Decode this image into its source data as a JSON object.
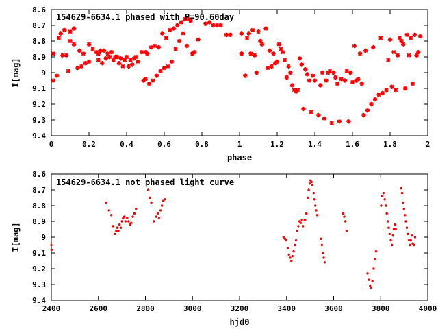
{
  "chart_data": [
    {
      "type": "scatter",
      "title": "154629-6634.1 phased with P=90.60day",
      "xlabel": "phase",
      "ylabel": "I[mag]",
      "xlim": [
        0,
        2
      ],
      "ylim": [
        9.4,
        8.6
      ],
      "y_inverted": true,
      "grid": false,
      "marker": "star",
      "color": "#ff0000",
      "x_ticks": [
        0,
        0.2,
        0.4,
        0.6,
        0.8,
        1,
        1.2,
        1.4,
        1.6,
        1.8,
        2
      ],
      "x_tick_labels": [
        "0",
        "0.2",
        "0.4",
        "0.6",
        "0.8",
        "1",
        "1.2",
        "1.4",
        "1.6",
        "1.8",
        "2"
      ],
      "y_ticks": [
        8.6,
        8.7,
        8.8,
        8.9,
        9,
        9.1,
        9.2,
        9.3,
        9.4
      ],
      "y_tick_labels": [
        "8.6",
        "8.7",
        "8.8",
        "8.9",
        "9",
        "9.1",
        "9.2",
        "9.3",
        "9.4"
      ],
      "points": [
        [
          0.01,
          9.05
        ],
        [
          0.01,
          8.88
        ],
        [
          0.03,
          9.02
        ],
        [
          0.04,
          8.78
        ],
        [
          0.05,
          8.75
        ],
        [
          0.06,
          8.89
        ],
        [
          0.07,
          8.73
        ],
        [
          0.08,
          8.89
        ],
        [
          0.09,
          8.99
        ],
        [
          0.1,
          8.74
        ],
        [
          0.1,
          8.8
        ],
        [
          0.12,
          8.72
        ],
        [
          0.12,
          8.82
        ],
        [
          0.14,
          8.97
        ],
        [
          0.15,
          8.86
        ],
        [
          0.16,
          8.96
        ],
        [
          0.17,
          8.88
        ],
        [
          0.18,
          8.94
        ],
        [
          0.2,
          8.93
        ],
        [
          0.2,
          8.82
        ],
        [
          0.22,
          8.85
        ],
        [
          0.24,
          8.87
        ],
        [
          0.25,
          8.92
        ],
        [
          0.25,
          8.88
        ],
        [
          0.26,
          8.86
        ],
        [
          0.27,
          8.94
        ],
        [
          0.28,
          8.86
        ],
        [
          0.29,
          8.91
        ],
        [
          0.3,
          8.88
        ],
        [
          0.31,
          8.9
        ],
        [
          0.32,
          8.87
        ],
        [
          0.33,
          8.92
        ],
        [
          0.34,
          8.9
        ],
        [
          0.35,
          8.9
        ],
        [
          0.36,
          8.94
        ],
        [
          0.37,
          8.91
        ],
        [
          0.38,
          8.96
        ],
        [
          0.39,
          8.92
        ],
        [
          0.4,
          8.9
        ],
        [
          0.41,
          8.96
        ],
        [
          0.42,
          8.92
        ],
        [
          0.43,
          8.95
        ],
        [
          0.44,
          8.91
        ],
        [
          0.45,
          8.9
        ],
        [
          0.46,
          8.93
        ],
        [
          0.48,
          8.87
        ],
        [
          0.49,
          9.05
        ],
        [
          0.5,
          9.04
        ],
        [
          0.5,
          8.87
        ],
        [
          0.51,
          8.88
        ],
        [
          0.52,
          9.07
        ],
        [
          0.53,
          8.84
        ],
        [
          0.54,
          9.05
        ],
        [
          0.55,
          8.83
        ],
        [
          0.56,
          9.02
        ],
        [
          0.57,
          8.84
        ],
        [
          0.58,
          8.99
        ],
        [
          0.59,
          8.75
        ],
        [
          0.6,
          8.97
        ],
        [
          0.61,
          8.78
        ],
        [
          0.62,
          8.96
        ],
        [
          0.63,
          8.73
        ],
        [
          0.64,
          8.93
        ],
        [
          0.65,
          8.72
        ],
        [
          0.66,
          8.85
        ],
        [
          0.67,
          8.7
        ],
        [
          0.68,
          8.8
        ],
        [
          0.69,
          8.68
        ],
        [
          0.7,
          8.75
        ],
        [
          0.71,
          8.66
        ],
        [
          0.72,
          8.83
        ],
        [
          0.73,
          8.66
        ],
        [
          0.74,
          8.67
        ],
        [
          0.75,
          8.88
        ],
        [
          0.76,
          8.87
        ],
        [
          0.78,
          8.79
        ],
        [
          0.82,
          8.69
        ],
        [
          0.84,
          8.68
        ],
        [
          0.86,
          8.7
        ],
        [
          0.88,
          8.7
        ],
        [
          0.9,
          8.7
        ],
        [
          0.93,
          8.76
        ],
        [
          0.95,
          8.76
        ],
        [
          1.01,
          8.88
        ],
        [
          1.01,
          8.75
        ],
        [
          1.03,
          9.02
        ],
        [
          1.04,
          8.78
        ],
        [
          1.05,
          8.75
        ],
        [
          1.06,
          8.88
        ],
        [
          1.07,
          8.73
        ],
        [
          1.08,
          8.89
        ],
        [
          1.09,
          9
        ],
        [
          1.1,
          8.74
        ],
        [
          1.11,
          8.8
        ],
        [
          1.12,
          8.82
        ],
        [
          1.14,
          8.72
        ],
        [
          1.15,
          8.97
        ],
        [
          1.16,
          8.86
        ],
        [
          1.17,
          8.96
        ],
        [
          1.18,
          8.88
        ],
        [
          1.19,
          8.94
        ],
        [
          1.2,
          8.93
        ],
        [
          1.21,
          8.82
        ],
        [
          1.22,
          8.85
        ],
        [
          1.23,
          8.87
        ],
        [
          1.24,
          8.92
        ],
        [
          1.25,
          9.03
        ],
        [
          1.26,
          8.96
        ],
        [
          1.27,
          9.0
        ],
        [
          1.28,
          9.08
        ],
        [
          1.29,
          9.11
        ],
        [
          1.3,
          9.12
        ],
        [
          1.31,
          9.11
        ],
        [
          1.32,
          8.91
        ],
        [
          1.33,
          8.95
        ],
        [
          1.34,
          9.23
        ],
        [
          1.35,
          8.98
        ],
        [
          1.36,
          9.01
        ],
        [
          1.37,
          9.05
        ],
        [
          1.38,
          9.25
        ],
        [
          1.39,
          9.02
        ],
        [
          1.4,
          9.05
        ],
        [
          1.42,
          9.27
        ],
        [
          1.43,
          9.08
        ],
        [
          1.44,
          9.0
        ],
        [
          1.45,
          9.29
        ],
        [
          1.46,
          9.05
        ],
        [
          1.47,
          9.0
        ],
        [
          1.48,
          8.99
        ],
        [
          1.49,
          9.32
        ],
        [
          1.5,
          9.0
        ],
        [
          1.51,
          9.03
        ],
        [
          1.52,
          9.07
        ],
        [
          1.53,
          9.31
        ],
        [
          1.54,
          9.04
        ],
        [
          1.56,
          9.05
        ],
        [
          1.57,
          8.99
        ],
        [
          1.58,
          9.31
        ],
        [
          1.59,
          9.0
        ],
        [
          1.6,
          9.06
        ],
        [
          1.61,
          8.83
        ],
        [
          1.62,
          9.05
        ],
        [
          1.63,
          9.04
        ],
        [
          1.64,
          8.88
        ],
        [
          1.65,
          9.07
        ],
        [
          1.66,
          9.27
        ],
        [
          1.67,
          8.86
        ],
        [
          1.68,
          9.24
        ],
        [
          1.7,
          9.2
        ],
        [
          1.71,
          8.84
        ],
        [
          1.72,
          9.17
        ],
        [
          1.74,
          9.14
        ],
        [
          1.75,
          8.78
        ],
        [
          1.76,
          9.13
        ],
        [
          1.78,
          9.11
        ],
        [
          1.79,
          8.92
        ],
        [
          1.8,
          8.79
        ],
        [
          1.81,
          9.09
        ],
        [
          1.82,
          8.87
        ],
        [
          1.83,
          9.11
        ],
        [
          1.84,
          8.89
        ],
        [
          1.85,
          8.78
        ],
        [
          1.86,
          8.8
        ],
        [
          1.87,
          8.82
        ],
        [
          1.88,
          9.1
        ],
        [
          1.89,
          8.76
        ],
        [
          1.9,
          8.89
        ],
        [
          1.91,
          8.78
        ],
        [
          1.92,
          9.07
        ],
        [
          1.93,
          8.76
        ],
        [
          1.94,
          8.89
        ],
        [
          1.95,
          8.87
        ],
        [
          1.96,
          8.77
        ]
      ]
    },
    {
      "type": "scatter",
      "title": "154629-6634.1 not phased light curve",
      "xlabel": "hjd0",
      "ylabel": "I[mag]",
      "xlim": [
        2400,
        4000
      ],
      "ylim": [
        9.4,
        8.6
      ],
      "y_inverted": true,
      "grid": false,
      "marker": "dot",
      "color": "#ff0000",
      "x_ticks": [
        2400,
        2600,
        2800,
        3000,
        3200,
        3400,
        3600,
        3800,
        4000
      ],
      "x_tick_labels": [
        "2400",
        "2600",
        "2800",
        "3000",
        "3200",
        "3400",
        "3600",
        "3800",
        "4000"
      ],
      "y_ticks": [
        8.6,
        8.7,
        8.8,
        8.9,
        9,
        9.1,
        9.2,
        9.3,
        9.4
      ],
      "y_tick_labels": [
        "8.6",
        "8.7",
        "8.8",
        "8.9",
        "9",
        "9.1",
        "9.2",
        "9.3",
        "9.4"
      ],
      "points": [
        [
          2400,
          9.05
        ],
        [
          2401,
          9.08
        ],
        [
          2632,
          8.78
        ],
        [
          2645,
          8.83
        ],
        [
          2655,
          8.86
        ],
        [
          2662,
          8.93
        ],
        [
          2670,
          8.98
        ],
        [
          2676,
          8.96
        ],
        [
          2680,
          8.94
        ],
        [
          2685,
          8.96
        ],
        [
          2690,
          8.92
        ],
        [
          2695,
          8.94
        ],
        [
          2700,
          8.9
        ],
        [
          2705,
          8.88
        ],
        [
          2710,
          8.87
        ],
        [
          2715,
          8.9
        ],
        [
          2722,
          8.88
        ],
        [
          2728,
          8.9
        ],
        [
          2735,
          8.92
        ],
        [
          2740,
          8.91
        ],
        [
          2746,
          8.87
        ],
        [
          2753,
          8.85
        ],
        [
          2760,
          8.82
        ],
        [
          2812,
          8.7
        ],
        [
          2818,
          8.75
        ],
        [
          2825,
          8.78
        ],
        [
          2835,
          8.9
        ],
        [
          2846,
          8.87
        ],
        [
          2852,
          8.85
        ],
        [
          2858,
          8.88
        ],
        [
          2864,
          8.83
        ],
        [
          2870,
          8.8
        ],
        [
          2876,
          8.77
        ],
        [
          2882,
          8.76
        ],
        [
          3387,
          9.0
        ],
        [
          3393,
          9.01
        ],
        [
          3398,
          9.02
        ],
        [
          3405,
          9.07
        ],
        [
          3410,
          9.11
        ],
        [
          3415,
          9.13
        ],
        [
          3420,
          9.15
        ],
        [
          3425,
          9.12
        ],
        [
          3430,
          9.09
        ],
        [
          3435,
          9.05
        ],
        [
          3440,
          9.02
        ],
        [
          3445,
          8.96
        ],
        [
          3450,
          8.93
        ],
        [
          3455,
          8.9
        ],
        [
          3460,
          8.91
        ],
        [
          3465,
          8.89
        ],
        [
          3470,
          8.93
        ],
        [
          3478,
          8.89
        ],
        [
          3484,
          8.85
        ],
        [
          3490,
          8.75
        ],
        [
          3494,
          8.7
        ],
        [
          3498,
          8.66
        ],
        [
          3502,
          8.64
        ],
        [
          3506,
          8.65
        ],
        [
          3510,
          8.67
        ],
        [
          3515,
          8.72
        ],
        [
          3518,
          8.76
        ],
        [
          3522,
          8.8
        ],
        [
          3526,
          8.83
        ],
        [
          3530,
          8.86
        ],
        [
          3546,
          9.01
        ],
        [
          3550,
          9.05
        ],
        [
          3554,
          9.1
        ],
        [
          3558,
          9.13
        ],
        [
          3562,
          9.16
        ],
        [
          3640,
          8.85
        ],
        [
          3645,
          8.87
        ],
        [
          3650,
          8.9
        ],
        [
          3655,
          8.96
        ],
        [
          3744,
          9.23
        ],
        [
          3750,
          9.27
        ],
        [
          3755,
          9.31
        ],
        [
          3760,
          9.32
        ],
        [
          3765,
          9.28
        ],
        [
          3770,
          9.2
        ],
        [
          3775,
          9.14
        ],
        [
          3780,
          9.09
        ],
        [
          3802,
          8.8
        ],
        [
          3807,
          8.74
        ],
        [
          3812,
          8.72
        ],
        [
          3817,
          8.76
        ],
        [
          3822,
          8.8
        ],
        [
          3826,
          8.85
        ],
        [
          3830,
          8.9
        ],
        [
          3834,
          8.94
        ],
        [
          3838,
          8.98
        ],
        [
          3843,
          9.02
        ],
        [
          3848,
          9.05
        ],
        [
          3852,
          8.99
        ],
        [
          3856,
          8.95
        ],
        [
          3860,
          8.92
        ],
        [
          3864,
          8.95
        ],
        [
          3887,
          8.69
        ],
        [
          3891,
          8.72
        ],
        [
          3895,
          8.78
        ],
        [
          3899,
          8.82
        ],
        [
          3903,
          8.86
        ],
        [
          3907,
          8.9
        ],
        [
          3911,
          8.94
        ],
        [
          3915,
          8.98
        ],
        [
          3920,
          9.02
        ],
        [
          3924,
          9.05
        ],
        [
          3928,
          9.02
        ],
        [
          3932,
          8.99
        ],
        [
          3936,
          9.04
        ],
        [
          3941,
          9.05
        ],
        [
          3946,
          9.0
        ]
      ]
    }
  ]
}
